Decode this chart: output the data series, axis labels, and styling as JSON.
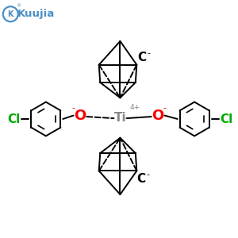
{
  "bg_color": "#ffffff",
  "logo_text": "Kuujia",
  "logo_color": "#4a90c4",
  "ti_label": "Ti",
  "ti_charge": "4+",
  "ti_color": "#888888",
  "o_label": "O",
  "o_charge": "-",
  "o_color": "#ff0000",
  "c_label": "C",
  "c_charge": "-",
  "c_color": "#000000",
  "cl_label": "Cl",
  "cl_color": "#00aa00",
  "bond_color": "#000000",
  "line_width": 1.4,
  "figsize": [
    3.0,
    3.0
  ],
  "dpi": 100
}
